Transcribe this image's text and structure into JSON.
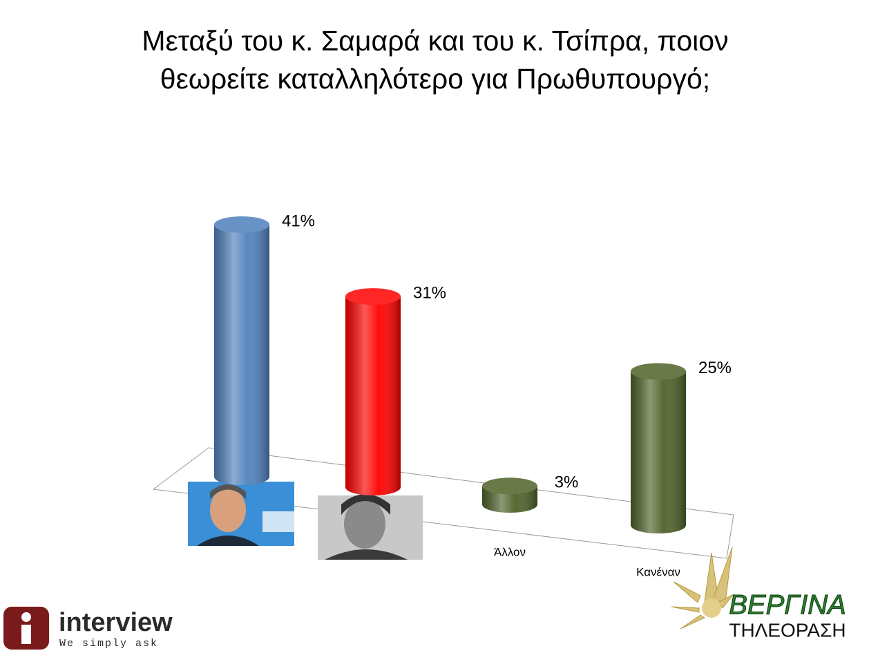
{
  "chart_data": {
    "type": "bar3d",
    "title": "Μεταξύ του κ. Σαμαρά και του κ. Τσίπρα, ποιον θεωρείτε καταλληλότερο για Πρωθυπουργό;",
    "categories": [
      null,
      null,
      "Άλλον",
      "Κανέναν"
    ],
    "values": [
      41,
      31,
      3,
      25
    ],
    "value_labels": [
      "41%",
      "31%",
      "3%",
      "25%"
    ],
    "colors": [
      "#4f81bd",
      "#ff0000",
      "#4f6228",
      "#4f6228"
    ]
  },
  "branding": {
    "left_logo": "interview",
    "left_tagline": "We simply ask",
    "right_logo": "ΒΕΡΓΙΝΑ",
    "right_tagline": "ΤΗΛΕΟΡΑΣΗ"
  }
}
